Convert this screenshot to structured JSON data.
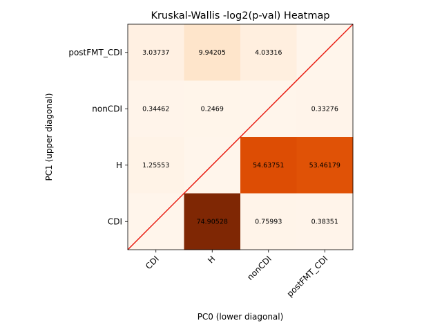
{
  "chart_data": {
    "type": "heatmap",
    "title": "Kruskal-Wallis -log2(p-val) Heatmap",
    "xlabel": "PC0 (lower diagonal)",
    "ylabel": "PC1 (upper diagonal)",
    "x_categories": [
      "CDI",
      "H",
      "nonCDI",
      "postFMT_CDI"
    ],
    "y_categories": [
      "CDI",
      "H",
      "nonCDI",
      "postFMT_CDI"
    ],
    "colormap": "Oranges",
    "color_range": [
      0,
      74.90528
    ],
    "diagonal_line_color": "#e8180e",
    "cells": [
      {
        "row": "postFMT_CDI",
        "col": "CDI",
        "value": 3.03737,
        "label": "3.03737"
      },
      {
        "row": "postFMT_CDI",
        "col": "H",
        "value": 9.94205,
        "label": "9.94205"
      },
      {
        "row": "postFMT_CDI",
        "col": "nonCDI",
        "value": 4.03316,
        "label": "4.03316"
      },
      {
        "row": "postFMT_CDI",
        "col": "postFMT_CDI",
        "value": 0,
        "label": ""
      },
      {
        "row": "nonCDI",
        "col": "CDI",
        "value": 0.34462,
        "label": "0.34462"
      },
      {
        "row": "nonCDI",
        "col": "H",
        "value": 0.2469,
        "label": "0.2469"
      },
      {
        "row": "nonCDI",
        "col": "nonCDI",
        "value": 0,
        "label": ""
      },
      {
        "row": "nonCDI",
        "col": "postFMT_CDI",
        "value": 0.33276,
        "label": "0.33276"
      },
      {
        "row": "H",
        "col": "CDI",
        "value": 1.25553,
        "label": "1.25553"
      },
      {
        "row": "H",
        "col": "H",
        "value": 0,
        "label": ""
      },
      {
        "row": "H",
        "col": "nonCDI",
        "value": 54.63751,
        "label": "54.63751"
      },
      {
        "row": "H",
        "col": "postFMT_CDI",
        "value": 53.46179,
        "label": "53.46179"
      },
      {
        "row": "CDI",
        "col": "CDI",
        "value": 0,
        "label": ""
      },
      {
        "row": "CDI",
        "col": "H",
        "value": 74.90528,
        "label": "74.90528"
      },
      {
        "row": "CDI",
        "col": "nonCDI",
        "value": 0.75993,
        "label": "0.75993"
      },
      {
        "row": "CDI",
        "col": "postFMT_CDI",
        "value": 0.38351,
        "label": "0.38351"
      }
    ]
  }
}
